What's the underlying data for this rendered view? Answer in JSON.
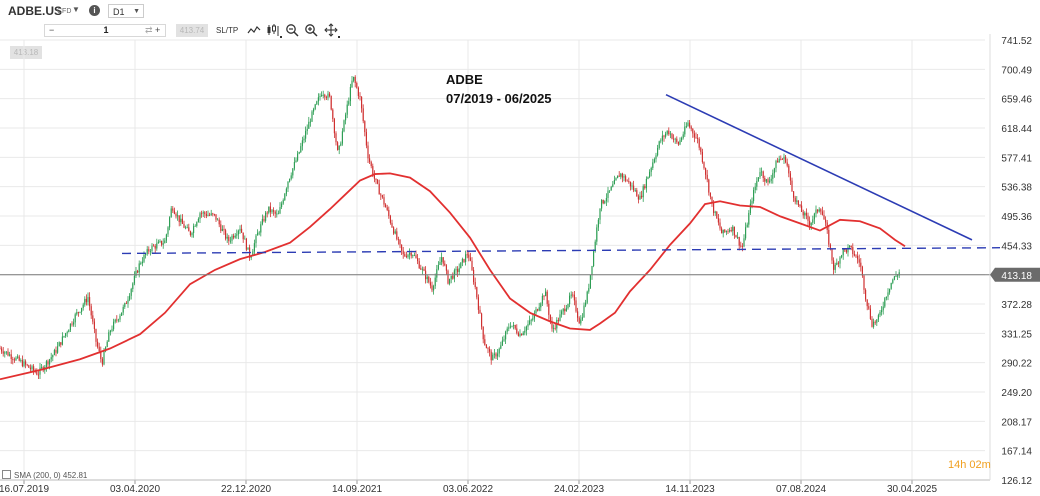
{
  "toolbar": {
    "symbol": "ADBE.US",
    "symbol_type": "CFD",
    "info_icon": "i",
    "timeframe": "D1",
    "sell_price": "413.18",
    "buy_price": "413.74",
    "quantity": "1",
    "qty_minus": "−",
    "qty_plus": "+",
    "qty_reset": "⇄",
    "sltp_label": "SL/TP",
    "icons": [
      "line-style-icon",
      "candle-type-icon",
      "zoom-out-icon",
      "zoom-in-icon",
      "crosshair-icon"
    ]
  },
  "chart_title_line1": "ADBE",
  "chart_title_line2": "07/2019 - 06/2025",
  "sma_legend": "SMA (200, 0) 452.81",
  "countdown": "14h 02m",
  "colors": {
    "bull": "#2e9e55",
    "bear": "#cf3030",
    "sma": "#e23030",
    "trendline": "#2c3cb4",
    "support": "#2c3cb4",
    "current": "#7a7a7a",
    "grid": "#e9e9e9",
    "price_tag_bg": "#6b6b6b"
  },
  "chart_data": {
    "type": "candlestick",
    "timeframe": "D1",
    "y_ticks": [
      126.12,
      167.14,
      208.17,
      249.2,
      290.22,
      331.25,
      372.28,
      413.31,
      454.33,
      495.36,
      536.38,
      577.41,
      618.44,
      659.46,
      700.49,
      741.52
    ],
    "ylim": [
      126.12,
      741.52
    ],
    "x_labels": [
      "16.07.2019",
      "03.04.2020",
      "22.12.2020",
      "14.09.2021",
      "03.06.2022",
      "24.02.2023",
      "14.11.2023",
      "07.08.2024",
      "30.04.2025"
    ],
    "current_price": 413.18,
    "current_price_label": "413.18",
    "price_path": [
      [
        0,
        310
      ],
      [
        22,
        290
      ],
      [
        38,
        275
      ],
      [
        55,
        305
      ],
      [
        75,
        355
      ],
      [
        88,
        382
      ],
      [
        96,
        320
      ],
      [
        102,
        290
      ],
      [
        110,
        335
      ],
      [
        125,
        370
      ],
      [
        140,
        430
      ],
      [
        150,
        450
      ],
      [
        165,
        460
      ],
      [
        172,
        510
      ],
      [
        180,
        488
      ],
      [
        190,
        470
      ],
      [
        200,
        500
      ],
      [
        215,
        495
      ],
      [
        228,
        460
      ],
      [
        240,
        480
      ],
      [
        250,
        438
      ],
      [
        258,
        472
      ],
      [
        268,
        505
      ],
      [
        278,
        495
      ],
      [
        288,
        545
      ],
      [
        298,
        580
      ],
      [
        310,
        630
      ],
      [
        322,
        670
      ],
      [
        330,
        660
      ],
      [
        338,
        580
      ],
      [
        346,
        640
      ],
      [
        353,
        690
      ],
      [
        360,
        660
      ],
      [
        368,
        580
      ],
      [
        375,
        545
      ],
      [
        385,
        510
      ],
      [
        395,
        470
      ],
      [
        403,
        440
      ],
      [
        412,
        445
      ],
      [
        422,
        420
      ],
      [
        432,
        395
      ],
      [
        442,
        440
      ],
      [
        448,
        405
      ],
      [
        458,
        420
      ],
      [
        468,
        445
      ],
      [
        476,
        390
      ],
      [
        484,
        320
      ],
      [
        492,
        295
      ],
      [
        500,
        310
      ],
      [
        510,
        345
      ],
      [
        520,
        330
      ],
      [
        532,
        350
      ],
      [
        545,
        390
      ],
      [
        552,
        335
      ],
      [
        562,
        360
      ],
      [
        572,
        385
      ],
      [
        580,
        345
      ],
      [
        588,
        390
      ],
      [
        600,
        510
      ],
      [
        610,
        530
      ],
      [
        620,
        555
      ],
      [
        630,
        540
      ],
      [
        640,
        520
      ],
      [
        650,
        560
      ],
      [
        660,
        600
      ],
      [
        668,
        615
      ],
      [
        678,
        595
      ],
      [
        688,
        625
      ],
      [
        698,
        600
      ],
      [
        705,
        560
      ],
      [
        712,
        510
      ],
      [
        722,
        470
      ],
      [
        732,
        480
      ],
      [
        742,
        450
      ],
      [
        752,
        520
      ],
      [
        760,
        560
      ],
      [
        768,
        540
      ],
      [
        778,
        575
      ],
      [
        786,
        575
      ],
      [
        792,
        530
      ],
      [
        800,
        505
      ],
      [
        810,
        485
      ],
      [
        820,
        510
      ],
      [
        826,
        480
      ],
      [
        834,
        420
      ],
      [
        842,
        445
      ],
      [
        850,
        450
      ],
      [
        860,
        430
      ],
      [
        866,
        380
      ],
      [
        872,
        345
      ],
      [
        878,
        350
      ],
      [
        886,
        385
      ],
      [
        892,
        405
      ],
      [
        900,
        418
      ]
    ],
    "sma200_path": [
      [
        0,
        267
      ],
      [
        40,
        280
      ],
      [
        80,
        295
      ],
      [
        110,
        310
      ],
      [
        140,
        330
      ],
      [
        165,
        360
      ],
      [
        190,
        400
      ],
      [
        215,
        420
      ],
      [
        240,
        435
      ],
      [
        265,
        445
      ],
      [
        290,
        458
      ],
      [
        310,
        480
      ],
      [
        330,
        505
      ],
      [
        345,
        525
      ],
      [
        360,
        545
      ],
      [
        375,
        554
      ],
      [
        390,
        555
      ],
      [
        410,
        549
      ],
      [
        430,
        530
      ],
      [
        450,
        500
      ],
      [
        470,
        465
      ],
      [
        490,
        420
      ],
      [
        510,
        380
      ],
      [
        530,
        360
      ],
      [
        550,
        348
      ],
      [
        570,
        338
      ],
      [
        590,
        336
      ],
      [
        600,
        345
      ],
      [
        615,
        360
      ],
      [
        630,
        390
      ],
      [
        650,
        420
      ],
      [
        670,
        455
      ],
      [
        690,
        485
      ],
      [
        705,
        512
      ],
      [
        720,
        516
      ],
      [
        740,
        510
      ],
      [
        760,
        508
      ],
      [
        780,
        495
      ],
      [
        800,
        485
      ],
      [
        820,
        475
      ],
      [
        840,
        490
      ],
      [
        860,
        488
      ],
      [
        880,
        478
      ],
      [
        895,
        462
      ],
      [
        905,
        453
      ]
    ],
    "downtrend_line": {
      "x": [
        666,
        972
      ],
      "y": [
        665,
        462
      ]
    },
    "support_line": {
      "x": [
        122,
        1000
      ],
      "y": [
        443,
        451
      ]
    }
  }
}
